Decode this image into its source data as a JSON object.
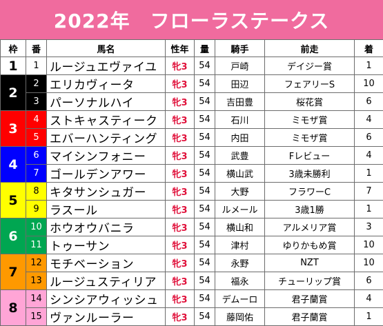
{
  "title": "2022年　フローラステークス",
  "headers": [
    "枠",
    "番",
    "馬名",
    "性年",
    "量",
    "騎手",
    "前走",
    "着"
  ],
  "colors": {
    "title_bg": "#f06b9e",
    "sexage_text": "#e0103a",
    "waku": {
      "1": {
        "bg": "#ffffff",
        "fg": "#000000"
      },
      "2": {
        "bg": "#000000",
        "fg": "#ffffff"
      },
      "3": {
        "bg": "#ff0000",
        "fg": "#ffffff"
      },
      "4": {
        "bg": "#0000ff",
        "fg": "#ffffff"
      },
      "5": {
        "bg": "#ffff00",
        "fg": "#000000"
      },
      "6": {
        "bg": "#00a651",
        "fg": "#ffffff"
      },
      "7": {
        "bg": "#ff9900",
        "fg": "#000000"
      },
      "8": {
        "bg": "#ffa5d6",
        "fg": "#000000"
      }
    }
  },
  "rows": [
    {
      "waku": "1",
      "uma": "1",
      "name": "ルージュエヴァイユ",
      "sexage": "牝3",
      "weight": "54",
      "jockey": "戸崎",
      "prev": "デイジー賞",
      "chaku": "1"
    },
    {
      "waku": "2",
      "uma": "2",
      "name": "エリカヴィータ",
      "sexage": "牝3",
      "weight": "54",
      "jockey": "田辺",
      "prev": "フェアリーS",
      "chaku": "10"
    },
    {
      "waku": "2",
      "uma": "3",
      "name": "パーソナルハイ",
      "sexage": "牝3",
      "weight": "54",
      "jockey": "吉田豊",
      "prev": "桜花賞",
      "chaku": "6"
    },
    {
      "waku": "3",
      "uma": "4",
      "name": "ストキャスティーク",
      "sexage": "牝3",
      "weight": "54",
      "jockey": "石川",
      "prev": "ミモザ賞",
      "chaku": "4"
    },
    {
      "waku": "3",
      "uma": "5",
      "name": "エバーハンティング",
      "sexage": "牝3",
      "weight": "54",
      "jockey": "内田",
      "prev": "ミモザ賞",
      "chaku": "6"
    },
    {
      "waku": "4",
      "uma": "6",
      "name": "マイシンフォニー",
      "sexage": "牝3",
      "weight": "54",
      "jockey": "武豊",
      "prev": "Fレビュー",
      "chaku": "4"
    },
    {
      "waku": "4",
      "uma": "7",
      "name": "ゴールデンアワー",
      "sexage": "牝3",
      "weight": "54",
      "jockey": "横山武",
      "prev": "3歳未勝利",
      "chaku": "1"
    },
    {
      "waku": "5",
      "uma": "8",
      "name": "キタサンシュガー",
      "sexage": "牝3",
      "weight": "54",
      "jockey": "大野",
      "prev": "フラワーC",
      "chaku": "7"
    },
    {
      "waku": "5",
      "uma": "9",
      "name": "ラスール",
      "sexage": "牝3",
      "weight": "54",
      "jockey": "ルメール",
      "prev": "3歳1勝",
      "chaku": "1"
    },
    {
      "waku": "6",
      "uma": "10",
      "name": "ホウオウバニラ",
      "sexage": "牝3",
      "weight": "54",
      "jockey": "横山和",
      "prev": "アルメリア賞",
      "chaku": "3"
    },
    {
      "waku": "6",
      "uma": "11",
      "name": "トゥーサン",
      "sexage": "牝3",
      "weight": "54",
      "jockey": "津村",
      "prev": "ゆりかもめ賞",
      "chaku": "10"
    },
    {
      "waku": "7",
      "uma": "12",
      "name": "モチベーション",
      "sexage": "牝3",
      "weight": "54",
      "jockey": "永野",
      "prev": "NZT",
      "chaku": "10"
    },
    {
      "waku": "7",
      "uma": "13",
      "name": "ルージュスティリア",
      "sexage": "牝3",
      "weight": "54",
      "jockey": "福永",
      "prev": "チューリップ賞",
      "chaku": "6"
    },
    {
      "waku": "8",
      "uma": "14",
      "name": "シンシアウィッシュ",
      "sexage": "牝3",
      "weight": "54",
      "jockey": "デムーロ",
      "prev": "君子蘭賞",
      "chaku": "4"
    },
    {
      "waku": "8",
      "uma": "15",
      "name": "ヴァンルーラー",
      "sexage": "牝3",
      "weight": "54",
      "jockey": "藤岡佑",
      "prev": "君子蘭賞",
      "chaku": "1"
    }
  ]
}
